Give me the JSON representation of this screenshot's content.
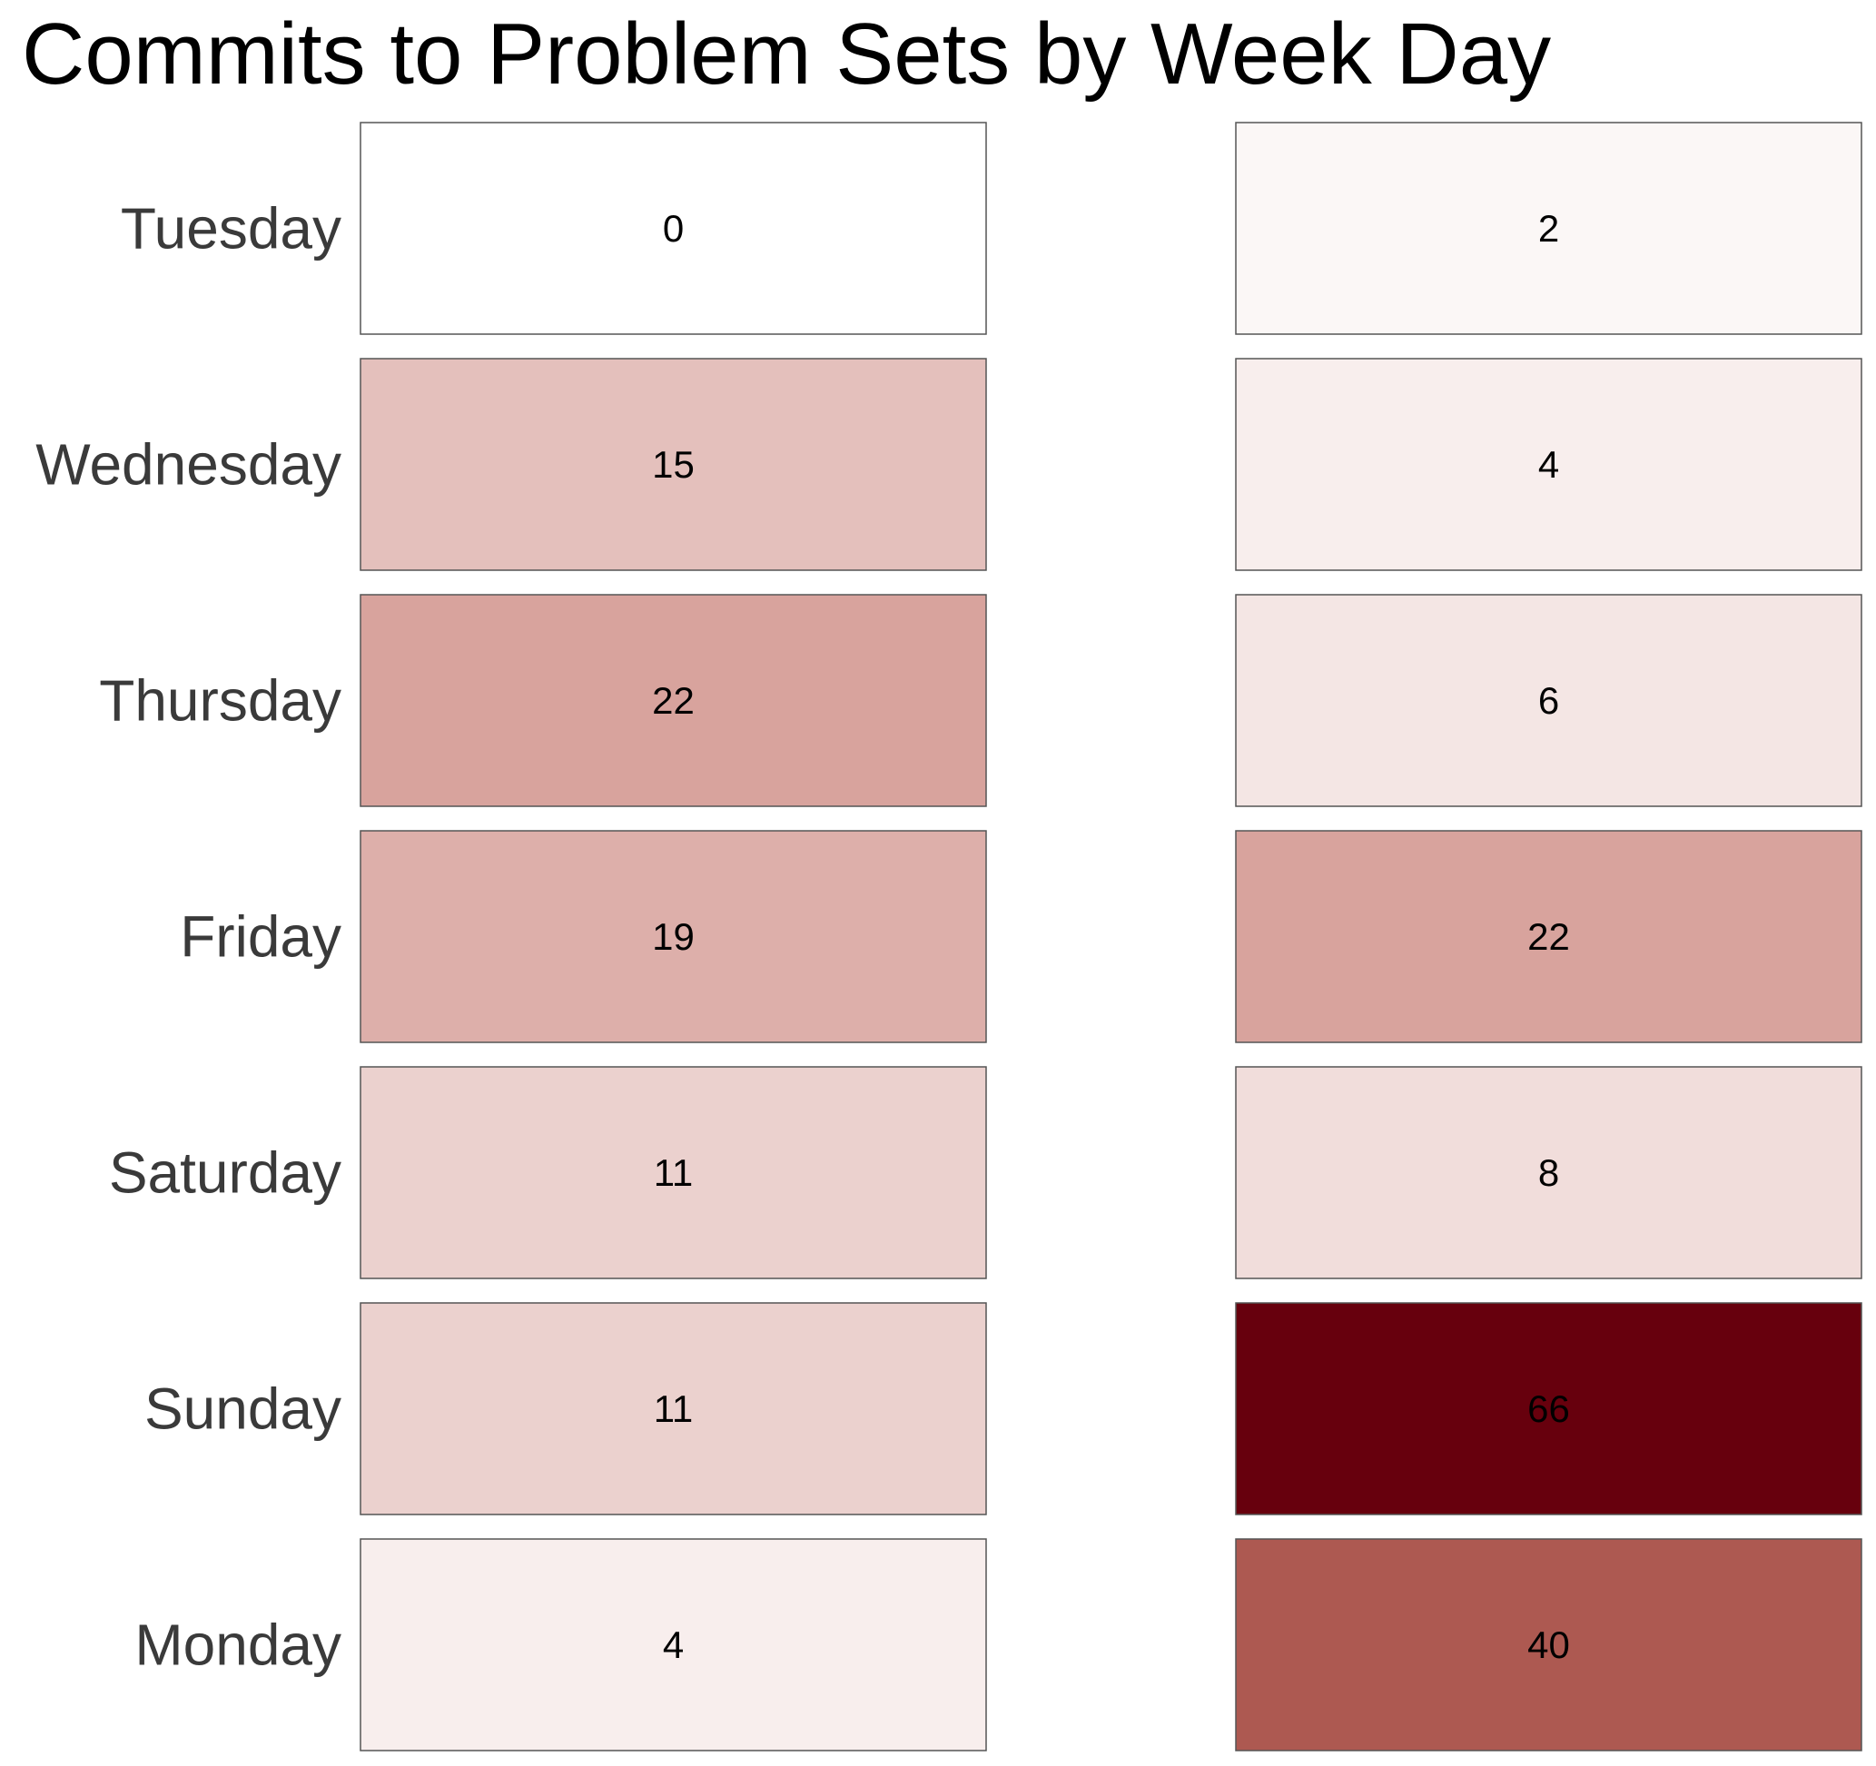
{
  "chart_data": {
    "type": "heatmap",
    "title": "Commits to Problem Sets by Week Day",
    "rows": [
      "Tuesday",
      "Wednesday",
      "Thursday",
      "Friday",
      "Saturday",
      "Sunday",
      "Monday"
    ],
    "columns": [
      "",
      ""
    ],
    "values": [
      [
        0,
        2
      ],
      [
        15,
        4
      ],
      [
        22,
        6
      ],
      [
        19,
        22
      ],
      [
        11,
        8
      ],
      [
        11,
        66
      ],
      [
        4,
        40
      ]
    ],
    "color_scale": {
      "min": 0,
      "max": 66,
      "low_color": "#ffffff",
      "high_color": "#67000d"
    },
    "legend": "none",
    "grid": false
  }
}
